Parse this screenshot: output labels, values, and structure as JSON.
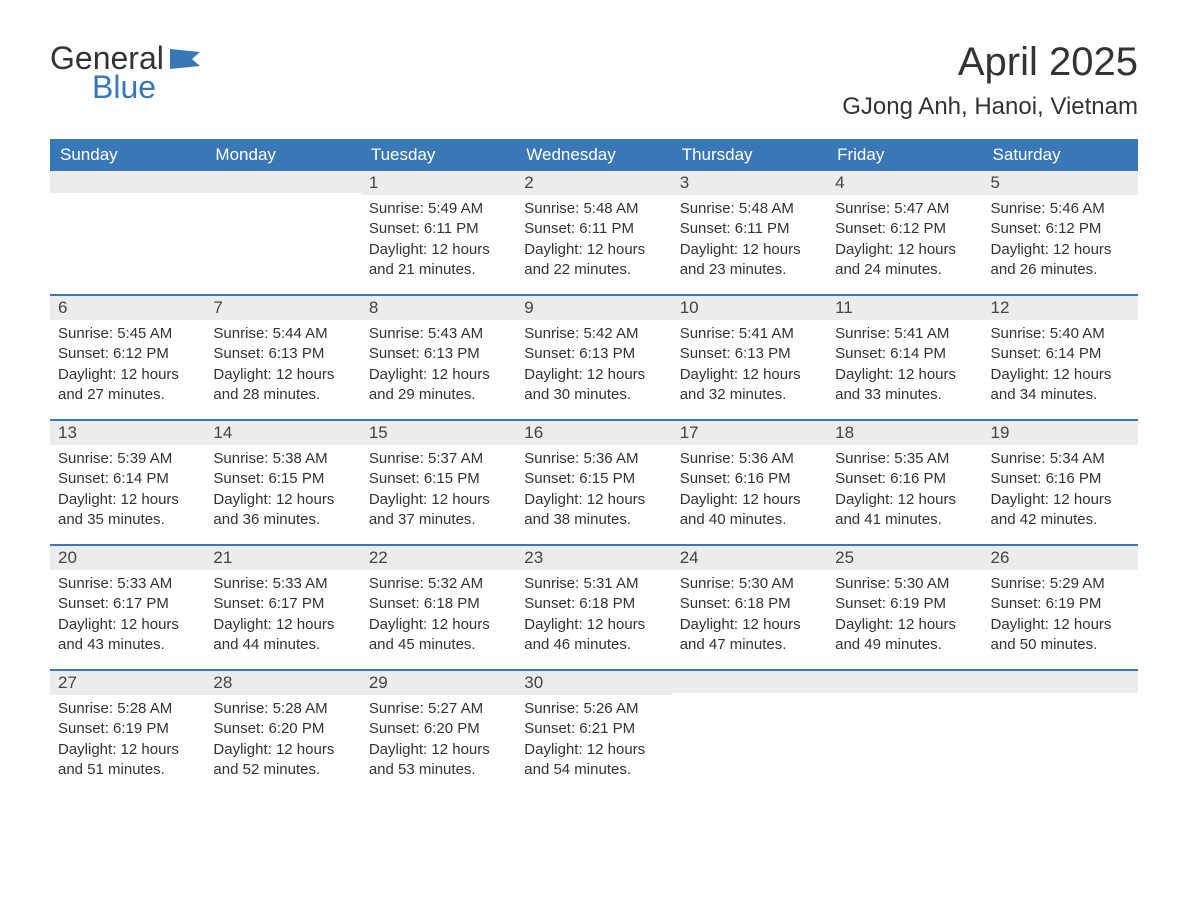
{
  "logo": {
    "word1": "General",
    "word2": "Blue",
    "word1_color": "#333333",
    "word2_color": "#3a77b7",
    "flag_color": "#3a77b7"
  },
  "title": "April 2025",
  "location": "GJong Anh, Hanoi, Vietnam",
  "colors": {
    "header_bg": "#3a77b7",
    "header_text": "#ffffff",
    "daynum_bg": "#ececec",
    "rule": "#3a77b7",
    "body_text": "#333333",
    "page_bg": "#ffffff"
  },
  "fonts": {
    "title_size_pt": 30,
    "location_size_pt": 18,
    "weekday_size_pt": 13,
    "daynum_size_pt": 13,
    "body_size_pt": 11,
    "family": "Arial"
  },
  "weekdays": [
    "Sunday",
    "Monday",
    "Tuesday",
    "Wednesday",
    "Thursday",
    "Friday",
    "Saturday"
  ],
  "weeks": [
    [
      {
        "day": "",
        "sunrise": "",
        "sunset": "",
        "daylight": ""
      },
      {
        "day": "",
        "sunrise": "",
        "sunset": "",
        "daylight": ""
      },
      {
        "day": "1",
        "sunrise": "Sunrise: 5:49 AM",
        "sunset": "Sunset: 6:11 PM",
        "daylight": "Daylight: 12 hours and 21 minutes."
      },
      {
        "day": "2",
        "sunrise": "Sunrise: 5:48 AM",
        "sunset": "Sunset: 6:11 PM",
        "daylight": "Daylight: 12 hours and 22 minutes."
      },
      {
        "day": "3",
        "sunrise": "Sunrise: 5:48 AM",
        "sunset": "Sunset: 6:11 PM",
        "daylight": "Daylight: 12 hours and 23 minutes."
      },
      {
        "day": "4",
        "sunrise": "Sunrise: 5:47 AM",
        "sunset": "Sunset: 6:12 PM",
        "daylight": "Daylight: 12 hours and 24 minutes."
      },
      {
        "day": "5",
        "sunrise": "Sunrise: 5:46 AM",
        "sunset": "Sunset: 6:12 PM",
        "daylight": "Daylight: 12 hours and 26 minutes."
      }
    ],
    [
      {
        "day": "6",
        "sunrise": "Sunrise: 5:45 AM",
        "sunset": "Sunset: 6:12 PM",
        "daylight": "Daylight: 12 hours and 27 minutes."
      },
      {
        "day": "7",
        "sunrise": "Sunrise: 5:44 AM",
        "sunset": "Sunset: 6:13 PM",
        "daylight": "Daylight: 12 hours and 28 minutes."
      },
      {
        "day": "8",
        "sunrise": "Sunrise: 5:43 AM",
        "sunset": "Sunset: 6:13 PM",
        "daylight": "Daylight: 12 hours and 29 minutes."
      },
      {
        "day": "9",
        "sunrise": "Sunrise: 5:42 AM",
        "sunset": "Sunset: 6:13 PM",
        "daylight": "Daylight: 12 hours and 30 minutes."
      },
      {
        "day": "10",
        "sunrise": "Sunrise: 5:41 AM",
        "sunset": "Sunset: 6:13 PM",
        "daylight": "Daylight: 12 hours and 32 minutes."
      },
      {
        "day": "11",
        "sunrise": "Sunrise: 5:41 AM",
        "sunset": "Sunset: 6:14 PM",
        "daylight": "Daylight: 12 hours and 33 minutes."
      },
      {
        "day": "12",
        "sunrise": "Sunrise: 5:40 AM",
        "sunset": "Sunset: 6:14 PM",
        "daylight": "Daylight: 12 hours and 34 minutes."
      }
    ],
    [
      {
        "day": "13",
        "sunrise": "Sunrise: 5:39 AM",
        "sunset": "Sunset: 6:14 PM",
        "daylight": "Daylight: 12 hours and 35 minutes."
      },
      {
        "day": "14",
        "sunrise": "Sunrise: 5:38 AM",
        "sunset": "Sunset: 6:15 PM",
        "daylight": "Daylight: 12 hours and 36 minutes."
      },
      {
        "day": "15",
        "sunrise": "Sunrise: 5:37 AM",
        "sunset": "Sunset: 6:15 PM",
        "daylight": "Daylight: 12 hours and 37 minutes."
      },
      {
        "day": "16",
        "sunrise": "Sunrise: 5:36 AM",
        "sunset": "Sunset: 6:15 PM",
        "daylight": "Daylight: 12 hours and 38 minutes."
      },
      {
        "day": "17",
        "sunrise": "Sunrise: 5:36 AM",
        "sunset": "Sunset: 6:16 PM",
        "daylight": "Daylight: 12 hours and 40 minutes."
      },
      {
        "day": "18",
        "sunrise": "Sunrise: 5:35 AM",
        "sunset": "Sunset: 6:16 PM",
        "daylight": "Daylight: 12 hours and 41 minutes."
      },
      {
        "day": "19",
        "sunrise": "Sunrise: 5:34 AM",
        "sunset": "Sunset: 6:16 PM",
        "daylight": "Daylight: 12 hours and 42 minutes."
      }
    ],
    [
      {
        "day": "20",
        "sunrise": "Sunrise: 5:33 AM",
        "sunset": "Sunset: 6:17 PM",
        "daylight": "Daylight: 12 hours and 43 minutes."
      },
      {
        "day": "21",
        "sunrise": "Sunrise: 5:33 AM",
        "sunset": "Sunset: 6:17 PM",
        "daylight": "Daylight: 12 hours and 44 minutes."
      },
      {
        "day": "22",
        "sunrise": "Sunrise: 5:32 AM",
        "sunset": "Sunset: 6:18 PM",
        "daylight": "Daylight: 12 hours and 45 minutes."
      },
      {
        "day": "23",
        "sunrise": "Sunrise: 5:31 AM",
        "sunset": "Sunset: 6:18 PM",
        "daylight": "Daylight: 12 hours and 46 minutes."
      },
      {
        "day": "24",
        "sunrise": "Sunrise: 5:30 AM",
        "sunset": "Sunset: 6:18 PM",
        "daylight": "Daylight: 12 hours and 47 minutes."
      },
      {
        "day": "25",
        "sunrise": "Sunrise: 5:30 AM",
        "sunset": "Sunset: 6:19 PM",
        "daylight": "Daylight: 12 hours and 49 minutes."
      },
      {
        "day": "26",
        "sunrise": "Sunrise: 5:29 AM",
        "sunset": "Sunset: 6:19 PM",
        "daylight": "Daylight: 12 hours and 50 minutes."
      }
    ],
    [
      {
        "day": "27",
        "sunrise": "Sunrise: 5:28 AM",
        "sunset": "Sunset: 6:19 PM",
        "daylight": "Daylight: 12 hours and 51 minutes."
      },
      {
        "day": "28",
        "sunrise": "Sunrise: 5:28 AM",
        "sunset": "Sunset: 6:20 PM",
        "daylight": "Daylight: 12 hours and 52 minutes."
      },
      {
        "day": "29",
        "sunrise": "Sunrise: 5:27 AM",
        "sunset": "Sunset: 6:20 PM",
        "daylight": "Daylight: 12 hours and 53 minutes."
      },
      {
        "day": "30",
        "sunrise": "Sunrise: 5:26 AM",
        "sunset": "Sunset: 6:21 PM",
        "daylight": "Daylight: 12 hours and 54 minutes."
      },
      {
        "day": "",
        "sunrise": "",
        "sunset": "",
        "daylight": ""
      },
      {
        "day": "",
        "sunrise": "",
        "sunset": "",
        "daylight": ""
      },
      {
        "day": "",
        "sunrise": "",
        "sunset": "",
        "daylight": ""
      }
    ]
  ]
}
